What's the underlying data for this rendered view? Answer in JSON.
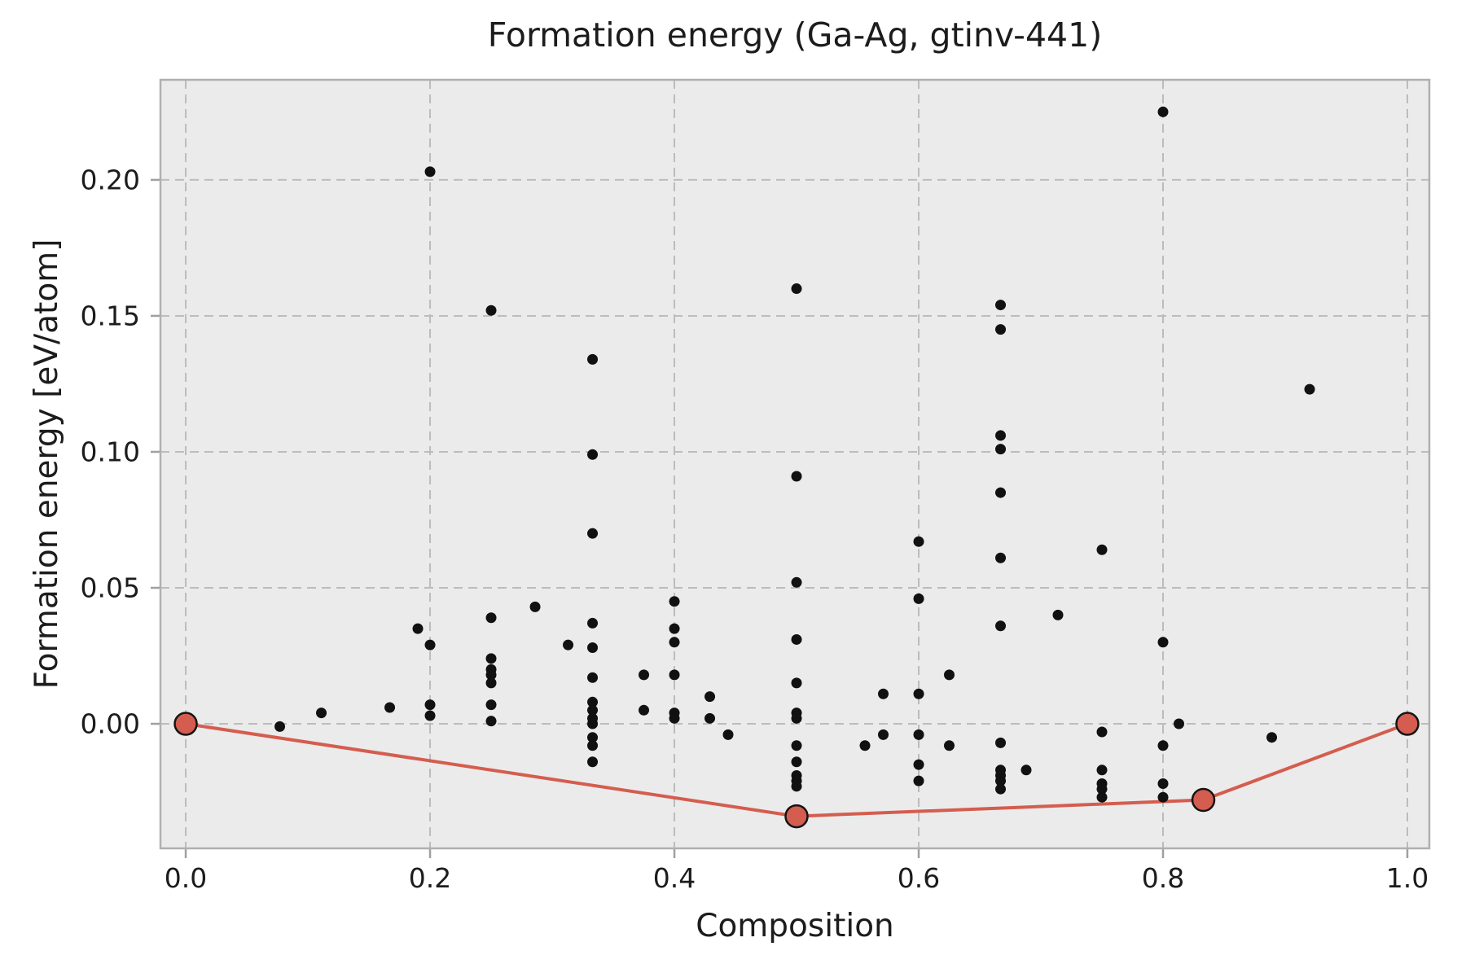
{
  "chart_data": {
    "type": "scatter",
    "title": "Formation energy (Ga-Ag, gtinv-441)",
    "xlabel": "Composition",
    "ylabel": "Formation energy [eV/atom]",
    "xlim": [
      -0.0207,
      1.018
    ],
    "ylim": [
      -0.0458,
      0.2368
    ],
    "xticks": [
      0.0,
      0.2,
      0.4,
      0.6,
      0.8,
      1.0
    ],
    "yticks": [
      0.0,
      0.05,
      0.1,
      0.15,
      0.2
    ],
    "grid": "dashed",
    "legend": "none",
    "colors": {
      "figure_bg": "#ffffff",
      "plot_bg": "#ebebeb",
      "grid": "#bcbcbc",
      "spine": "#b0b0b0",
      "tick": "#a0a0a0",
      "text": "#1c1c1c",
      "scatter_point": "#111111",
      "hull_line": "#d45d4f",
      "hull_marker_fill": "#d45d4f",
      "hull_marker_edge": "#141414"
    },
    "series": [
      {
        "name": "structure-formation-energies",
        "type": "scatter",
        "points": [
          [
            0.077,
            -0.001
          ],
          [
            0.111,
            0.004
          ],
          [
            0.167,
            0.006
          ],
          [
            0.19,
            0.035
          ],
          [
            0.2,
            0.203
          ],
          [
            0.2,
            0.029
          ],
          [
            0.2,
            0.007
          ],
          [
            0.2,
            0.003
          ],
          [
            0.25,
            0.152
          ],
          [
            0.25,
            0.039
          ],
          [
            0.25,
            0.024
          ],
          [
            0.25,
            0.02
          ],
          [
            0.25,
            0.018
          ],
          [
            0.25,
            0.015
          ],
          [
            0.25,
            0.007
          ],
          [
            0.25,
            0.001
          ],
          [
            0.286,
            0.043
          ],
          [
            0.313,
            0.029
          ],
          [
            0.333,
            0.134
          ],
          [
            0.333,
            0.099
          ],
          [
            0.333,
            0.07
          ],
          [
            0.333,
            0.037
          ],
          [
            0.333,
            0.028
          ],
          [
            0.333,
            0.017
          ],
          [
            0.333,
            0.008
          ],
          [
            0.333,
            0.005
          ],
          [
            0.333,
            0.002
          ],
          [
            0.333,
            0.0
          ],
          [
            0.333,
            -0.005
          ],
          [
            0.333,
            -0.008
          ],
          [
            0.333,
            -0.014
          ],
          [
            0.375,
            0.018
          ],
          [
            0.375,
            0.005
          ],
          [
            0.4,
            0.045
          ],
          [
            0.4,
            0.035
          ],
          [
            0.4,
            0.03
          ],
          [
            0.4,
            0.018
          ],
          [
            0.4,
            0.004
          ],
          [
            0.4,
            0.002
          ],
          [
            0.429,
            0.01
          ],
          [
            0.429,
            0.002
          ],
          [
            0.444,
            -0.004
          ],
          [
            0.5,
            0.16
          ],
          [
            0.5,
            0.091
          ],
          [
            0.5,
            0.052
          ],
          [
            0.5,
            0.031
          ],
          [
            0.5,
            0.015
          ],
          [
            0.5,
            0.004
          ],
          [
            0.5,
            0.002
          ],
          [
            0.5,
            -0.008
          ],
          [
            0.5,
            -0.014
          ],
          [
            0.5,
            -0.019
          ],
          [
            0.5,
            -0.021
          ],
          [
            0.5,
            -0.023
          ],
          [
            0.556,
            -0.008
          ],
          [
            0.571,
            0.011
          ],
          [
            0.571,
            -0.004
          ],
          [
            0.6,
            0.067
          ],
          [
            0.6,
            0.046
          ],
          [
            0.6,
            0.011
          ],
          [
            0.6,
            -0.004
          ],
          [
            0.6,
            -0.015
          ],
          [
            0.6,
            -0.021
          ],
          [
            0.625,
            0.018
          ],
          [
            0.625,
            -0.008
          ],
          [
            0.667,
            0.154
          ],
          [
            0.667,
            0.145
          ],
          [
            0.667,
            0.106
          ],
          [
            0.667,
            0.101
          ],
          [
            0.667,
            0.085
          ],
          [
            0.667,
            0.061
          ],
          [
            0.667,
            0.036
          ],
          [
            0.667,
            -0.007
          ],
          [
            0.667,
            -0.017
          ],
          [
            0.667,
            -0.019
          ],
          [
            0.667,
            -0.021
          ],
          [
            0.667,
            -0.024
          ],
          [
            0.688,
            -0.017
          ],
          [
            0.714,
            0.04
          ],
          [
            0.75,
            0.064
          ],
          [
            0.75,
            -0.003
          ],
          [
            0.75,
            -0.017
          ],
          [
            0.75,
            -0.022
          ],
          [
            0.75,
            -0.024
          ],
          [
            0.75,
            -0.027
          ],
          [
            0.8,
            0.225
          ],
          [
            0.8,
            0.03
          ],
          [
            0.8,
            -0.008
          ],
          [
            0.8,
            -0.022
          ],
          [
            0.8,
            -0.027
          ],
          [
            0.813,
            0.0
          ],
          [
            0.889,
            -0.005
          ],
          [
            0.92,
            0.123
          ]
        ]
      },
      {
        "name": "convex-hull",
        "type": "line-with-markers",
        "points": [
          [
            0.0,
            0.0
          ],
          [
            0.5,
            -0.034
          ],
          [
            0.833,
            -0.028
          ],
          [
            1.0,
            0.0
          ]
        ]
      }
    ]
  }
}
